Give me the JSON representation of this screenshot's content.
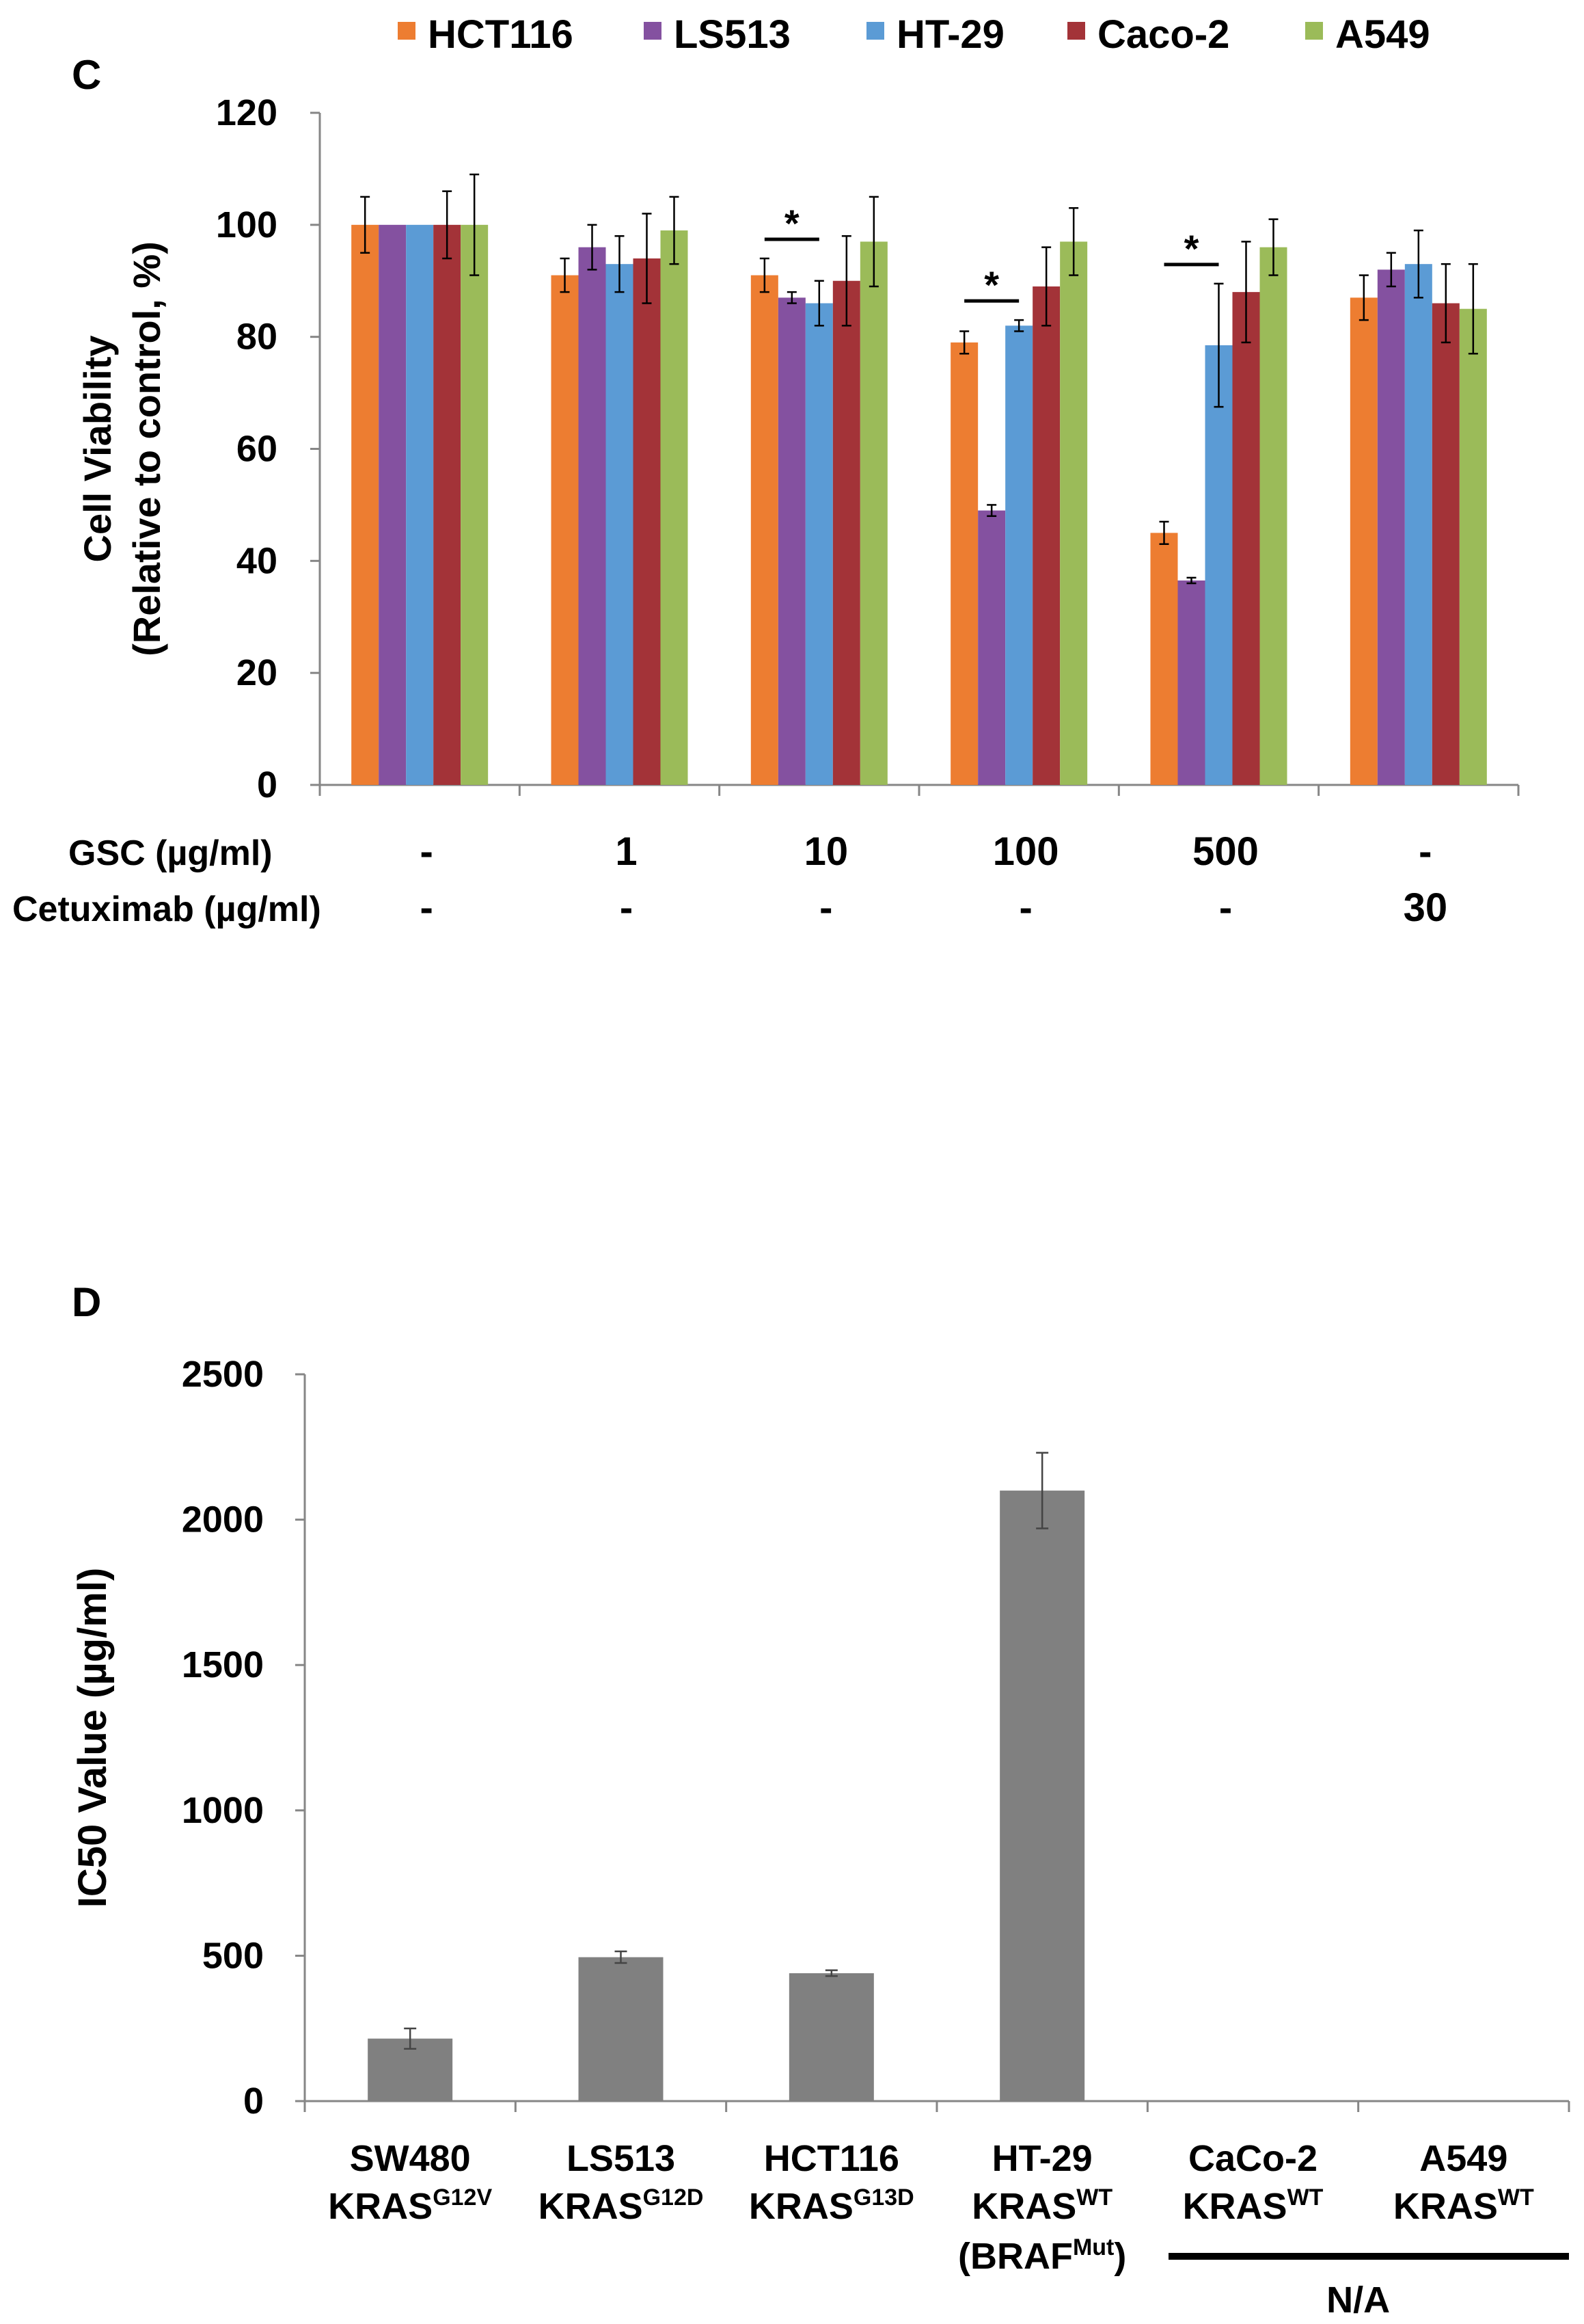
{
  "chart_data": [
    {
      "panel": "C",
      "type": "bar",
      "ylabel_lines": [
        "Cell Viability",
        "(Relative to control, %)"
      ],
      "ylim": [
        0,
        120
      ],
      "yticks": [
        0,
        20,
        40,
        60,
        80,
        100,
        120
      ],
      "row_labels": [
        "GSC (µg/ml)",
        "Cetuximab (µg/ml)"
      ],
      "categories": [
        {
          "gsc": "-",
          "cetuximab": "-"
        },
        {
          "gsc": "1",
          "cetuximab": "-"
        },
        {
          "gsc": "10",
          "cetuximab": "-"
        },
        {
          "gsc": "100",
          "cetuximab": "-"
        },
        {
          "gsc": "500",
          "cetuximab": "-"
        },
        {
          "gsc": "-",
          "cetuximab": "30"
        }
      ],
      "legend_position": "top",
      "series": [
        {
          "name": "HCT116",
          "color": "#ed7d31",
          "values": [
            100,
            91,
            91,
            79,
            45,
            87
          ],
          "errors": [
            5,
            3,
            3,
            2,
            2,
            4
          ]
        },
        {
          "name": "LS513",
          "color": "#8451a0",
          "values": [
            100,
            96,
            87,
            49,
            36.5,
            92
          ],
          "errors": [
            0,
            4,
            1,
            1,
            0.5,
            3
          ]
        },
        {
          "name": "HT-29",
          "color": "#5b9bd5",
          "values": [
            100,
            93,
            86,
            82,
            78.5,
            93
          ],
          "errors": [
            0,
            5,
            4,
            1,
            11,
            6
          ]
        },
        {
          "name": "Caco-2",
          "color": "#a33338",
          "values": [
            100,
            94,
            90,
            89,
            88,
            86
          ],
          "errors": [
            6,
            8,
            8,
            7,
            9,
            7
          ]
        },
        {
          "name": "A549",
          "color": "#9bbb59",
          "values": [
            100,
            99,
            97,
            97,
            96,
            85
          ],
          "errors": [
            9,
            6,
            8,
            6,
            5,
            8
          ]
        }
      ],
      "significance": [
        {
          "category_index": 2,
          "label": "*"
        },
        {
          "category_index": 3,
          "label": "*"
        },
        {
          "category_index": 4,
          "label": "*"
        }
      ]
    },
    {
      "panel": "D",
      "type": "bar",
      "ylabel": "IC50 Value (µg/ml)",
      "ylim": [
        0,
        2500
      ],
      "yticks": [
        0,
        500,
        1000,
        1500,
        2000,
        2500
      ],
      "bar_color": "#808080",
      "categories": [
        {
          "line1": "SW480",
          "base": "KRAS",
          "sup": "G12V"
        },
        {
          "line1": "LS513",
          "base": "KRAS",
          "sup": "G12D"
        },
        {
          "line1": "HCT116",
          "base": "KRAS",
          "sup": "G13D"
        },
        {
          "line1": "HT-29",
          "base": "KRAS",
          "sup": "WT",
          "line3_base": "(BRAF",
          "line3_sup": "Mut",
          "line3_end": ")"
        },
        {
          "line1": "CaCo-2",
          "base": "KRAS",
          "sup": "WT"
        },
        {
          "line1": "A549",
          "base": "KRAS",
          "sup": "WT"
        }
      ],
      "values": [
        215,
        495,
        440,
        2100,
        null,
        null
      ],
      "errors": [
        35,
        20,
        10,
        130,
        null,
        null
      ],
      "na_label": "N/A",
      "na_categories": [
        4,
        5
      ]
    }
  ]
}
